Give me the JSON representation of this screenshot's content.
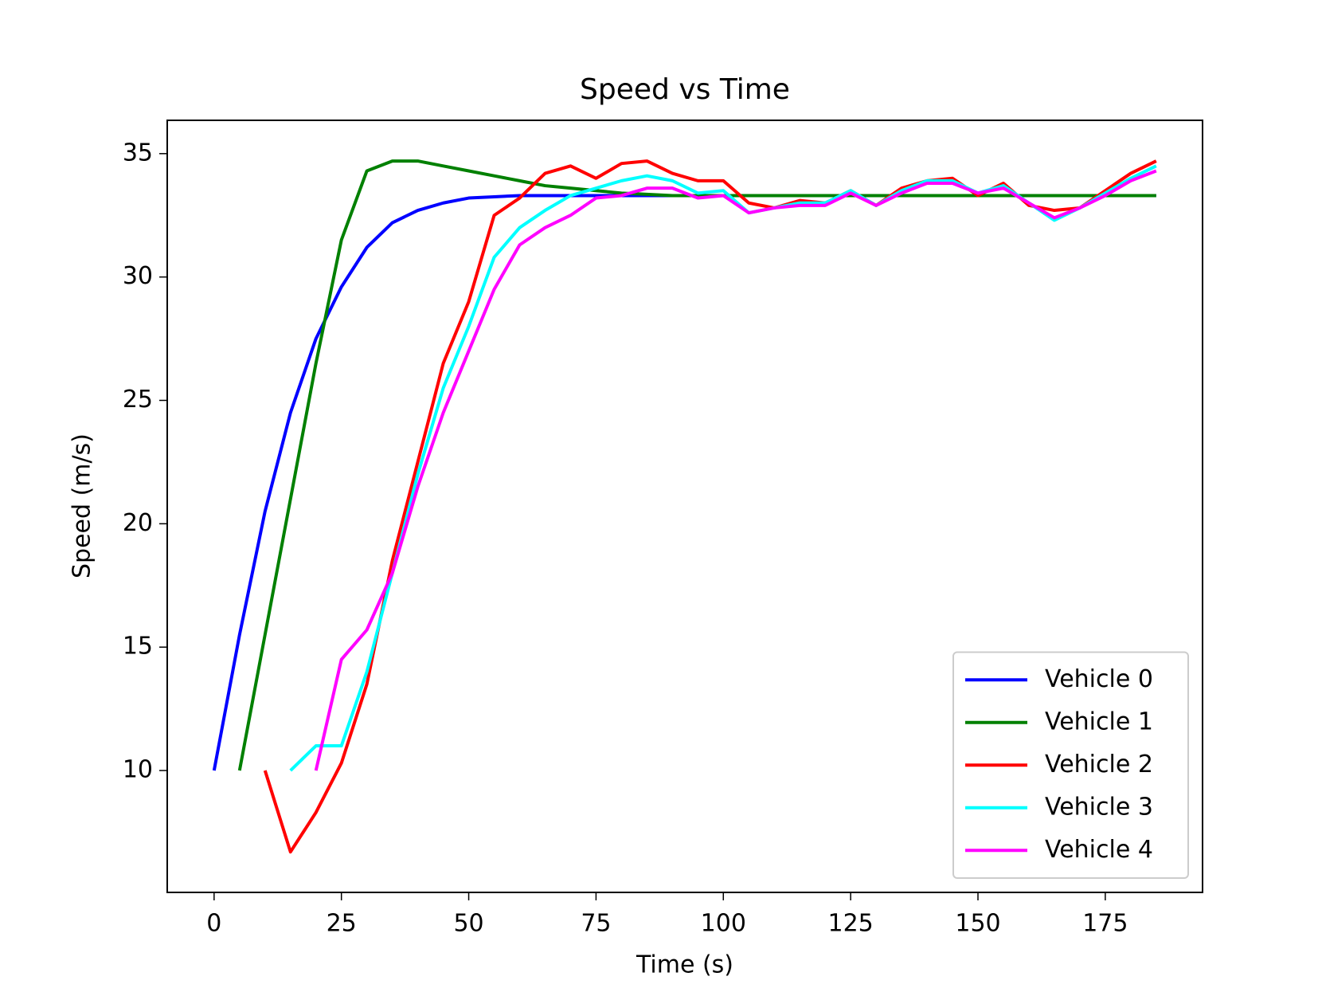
{
  "chart_data": {
    "type": "line",
    "title": "Speed vs Time",
    "x_label": "Time (s)",
    "y_label": "Speed (m/s)",
    "x": [
      0,
      5,
      10,
      15,
      20,
      25,
      30,
      35,
      40,
      45,
      50,
      55,
      60,
      65,
      70,
      75,
      80,
      85,
      90,
      95,
      100,
      105,
      110,
      115,
      120,
      125,
      130,
      135,
      140,
      145,
      150,
      155,
      160,
      165,
      170,
      175,
      180,
      185
    ],
    "series": [
      {
        "name": "Vehicle 0",
        "color": "#0000ff",
        "values": [
          10,
          15.5,
          20.5,
          24.5,
          27.5,
          29.6,
          31.2,
          32.2,
          32.7,
          33.0,
          33.2,
          33.25,
          33.3,
          33.3,
          33.3,
          33.3,
          33.3,
          33.3,
          33.3,
          33.3,
          33.3,
          33.3,
          33.3,
          33.3,
          33.3,
          33.3,
          33.3,
          33.3,
          33.3,
          33.3,
          33.3,
          33.3,
          33.3,
          33.3,
          33.3,
          33.3,
          33.3,
          33.3
        ]
      },
      {
        "name": "Vehicle 1",
        "color": "#008000",
        "values": [
          null,
          10,
          15.5,
          21,
          26.5,
          31.5,
          34.3,
          34.7,
          34.7,
          34.5,
          34.3,
          34.1,
          33.9,
          33.7,
          33.6,
          33.5,
          33.4,
          33.35,
          33.3,
          33.3,
          33.3,
          33.3,
          33.3,
          33.3,
          33.3,
          33.3,
          33.3,
          33.3,
          33.3,
          33.3,
          33.3,
          33.3,
          33.3,
          33.3,
          33.3,
          33.3,
          33.3,
          33.3
        ]
      },
      {
        "name": "Vehicle 2",
        "color": "#ff0000",
        "values": [
          null,
          null,
          10,
          6.7,
          8.3,
          10.3,
          13.5,
          18.5,
          22.5,
          26.5,
          29,
          32.5,
          33.2,
          34.2,
          34.5,
          34.0,
          34.6,
          34.7,
          34.2,
          33.9,
          33.9,
          33.0,
          32.8,
          33.1,
          33.0,
          33.5,
          32.9,
          33.6,
          33.9,
          34.0,
          33.3,
          33.8,
          32.9,
          32.7,
          32.8,
          33.5,
          34.2,
          34.7
        ]
      },
      {
        "name": "Vehicle 3",
        "color": "#00ffff",
        "values": [
          null,
          null,
          null,
          10,
          11,
          11,
          14,
          18,
          22,
          25.5,
          28,
          30.8,
          32,
          32.7,
          33.3,
          33.6,
          33.9,
          34.1,
          33.9,
          33.4,
          33.5,
          32.6,
          32.8,
          33.0,
          33.0,
          33.5,
          32.9,
          33.5,
          33.9,
          33.9,
          33.4,
          33.7,
          33.0,
          32.3,
          32.8,
          33.4,
          34.0,
          34.5
        ]
      },
      {
        "name": "Vehicle 4",
        "color": "#ff00ff",
        "values": [
          null,
          null,
          null,
          null,
          10,
          14.5,
          15.7,
          18,
          21.5,
          24.5,
          27,
          29.5,
          31.3,
          32,
          32.5,
          33.2,
          33.3,
          33.6,
          33.6,
          33.2,
          33.3,
          32.6,
          32.8,
          32.9,
          32.9,
          33.4,
          32.9,
          33.4,
          33.8,
          33.8,
          33.4,
          33.6,
          33.0,
          32.4,
          32.8,
          33.3,
          33.9,
          34.3
        ]
      }
    ],
    "xlim": [
      -9.2,
      194.1
    ],
    "ylim": [
      5.06,
      36.35
    ],
    "xticks": [
      0,
      25,
      50,
      75,
      100,
      125,
      150,
      175
    ],
    "yticks": [
      10,
      15,
      20,
      25,
      30,
      35
    ],
    "legend": "lower right"
  }
}
